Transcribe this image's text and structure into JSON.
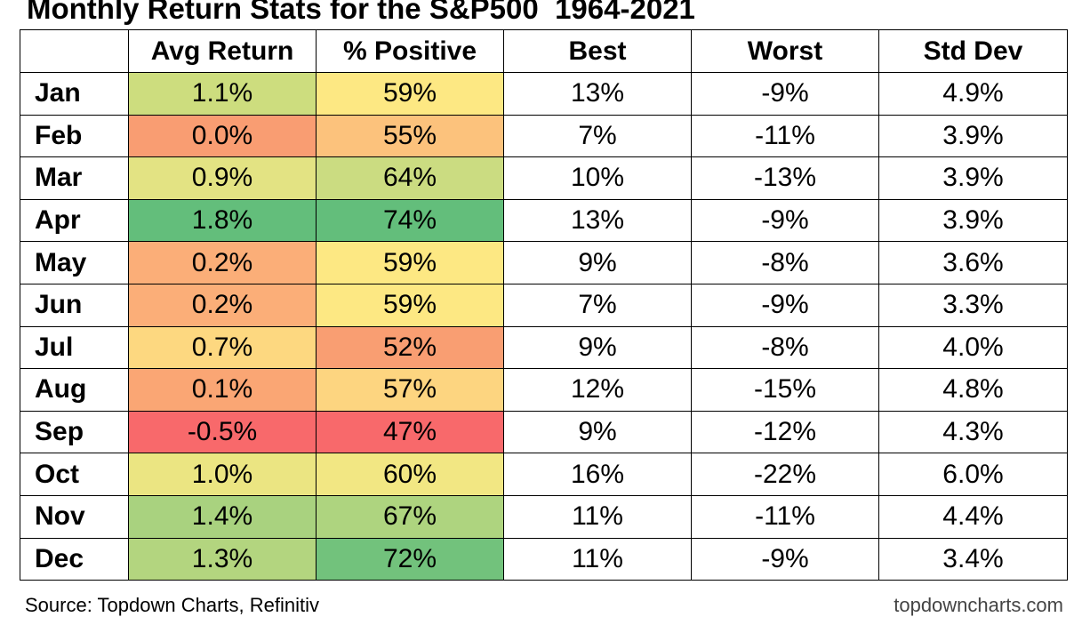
{
  "title": "Monthly Return Stats for the S&P500  1964-2021",
  "source": "Source: Topdown Charts, Refinitiv",
  "website": "topdowncharts.com",
  "chart_data": {
    "type": "table",
    "title": "Monthly Return Stats for the S&P500  1964-2021",
    "columns": [
      "",
      "Avg Return",
      "% Positive",
      "Best",
      "Worst",
      "Std Dev"
    ],
    "rows": [
      {
        "month": "Jan",
        "avg_return": "1.1%",
        "pct_positive": "59%",
        "best": "13%",
        "worst": "-9%",
        "std_dev": "4.9%",
        "avg_color": "#cddd7e",
        "pos_color": "#fde883"
      },
      {
        "month": "Feb",
        "avg_return": "0.0%",
        "pct_positive": "55%",
        "best": "7%",
        "worst": "-11%",
        "std_dev": "3.9%",
        "avg_color": "#f99d72",
        "pos_color": "#fcc27c"
      },
      {
        "month": "Mar",
        "avg_return": "0.9%",
        "pct_positive": "64%",
        "best": "10%",
        "worst": "-13%",
        "std_dev": "3.9%",
        "avg_color": "#e3e383",
        "pos_color": "#cbdc81"
      },
      {
        "month": "Apr",
        "avg_return": "1.8%",
        "pct_positive": "74%",
        "best": "13%",
        "worst": "-9%",
        "std_dev": "3.9%",
        "avg_color": "#63be7b",
        "pos_color": "#63be7b"
      },
      {
        "month": "May",
        "avg_return": "0.2%",
        "pct_positive": "59%",
        "best": "9%",
        "worst": "-8%",
        "std_dev": "3.6%",
        "avg_color": "#fbae78",
        "pos_color": "#fde883"
      },
      {
        "month": "Jun",
        "avg_return": "0.2%",
        "pct_positive": "59%",
        "best": "7%",
        "worst": "-9%",
        "std_dev": "3.3%",
        "avg_color": "#fbae78",
        "pos_color": "#fde883"
      },
      {
        "month": "Jul",
        "avg_return": "0.7%",
        "pct_positive": "52%",
        "best": "9%",
        "worst": "-8%",
        "std_dev": "4.0%",
        "avg_color": "#fdd880",
        "pos_color": "#f99e72"
      },
      {
        "month": "Aug",
        "avg_return": "0.1%",
        "pct_positive": "57%",
        "best": "12%",
        "worst": "-15%",
        "std_dev": "4.8%",
        "avg_color": "#faa674",
        "pos_color": "#fdd580"
      },
      {
        "month": "Sep",
        "avg_return": "-0.5%",
        "pct_positive": "47%",
        "best": "9%",
        "worst": "-12%",
        "std_dev": "4.3%",
        "avg_color": "#f8696b",
        "pos_color": "#f8696b"
      },
      {
        "month": "Oct",
        "avg_return": "1.0%",
        "pct_positive": "60%",
        "best": "16%",
        "worst": "-22%",
        "std_dev": "6.0%",
        "avg_color": "#ebe582",
        "pos_color": "#f2e783"
      },
      {
        "month": "Nov",
        "avg_return": "1.4%",
        "pct_positive": "67%",
        "best": "11%",
        "worst": "-11%",
        "std_dev": "4.4%",
        "avg_color": "#a9d27f",
        "pos_color": "#aed47f"
      },
      {
        "month": "Dec",
        "avg_return": "1.3%",
        "pct_positive": "72%",
        "best": "11%",
        "worst": "-9%",
        "std_dev": "3.4%",
        "avg_color": "#b3d57f",
        "pos_color": "#72c27c"
      }
    ]
  }
}
